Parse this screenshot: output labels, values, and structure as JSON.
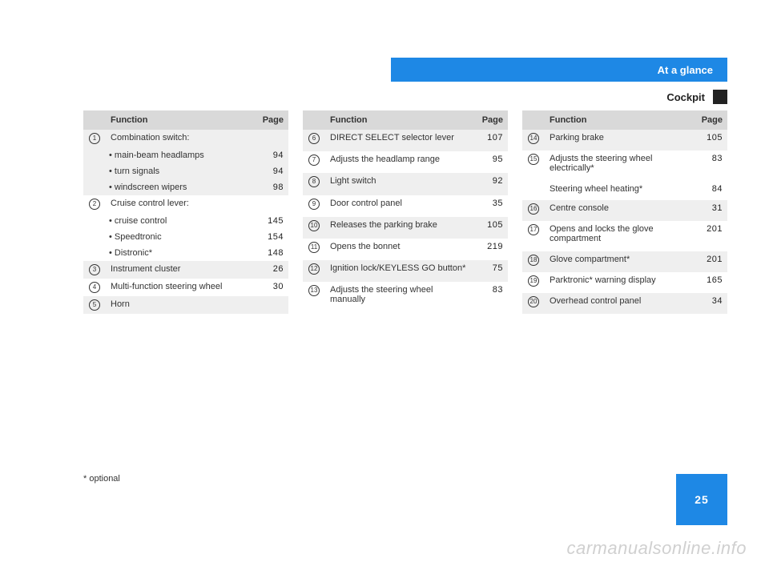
{
  "banner": {
    "text": "At a glance"
  },
  "subtitle": "Cockpit",
  "columns": {
    "function": "Function",
    "page": "Page"
  },
  "footnote": "* optional",
  "pageNumber": "25",
  "watermark": "carmanualsonline.info",
  "table1": [
    {
      "num": "1",
      "text": "Combination switch:",
      "page": "",
      "shade": true
    },
    {
      "num": "",
      "text": "• main-beam headlamps",
      "page": "94",
      "shade": true,
      "bullet": true
    },
    {
      "num": "",
      "text": "• turn signals",
      "page": "94",
      "shade": true,
      "bullet": true
    },
    {
      "num": "",
      "text": "• windscreen wipers",
      "page": "98",
      "shade": true,
      "bullet": true
    },
    {
      "num": "2",
      "text": "Cruise control lever:",
      "page": "",
      "shade": false
    },
    {
      "num": "",
      "text": "• cruise control",
      "page": "145",
      "shade": false,
      "bullet": true
    },
    {
      "num": "",
      "text": "• Speedtronic",
      "page": "154",
      "shade": false,
      "bullet": true
    },
    {
      "num": "",
      "text": "• Distronic*",
      "page": "148",
      "shade": false,
      "bullet": true
    },
    {
      "num": "3",
      "text": "Instrument cluster",
      "page": "26",
      "shade": true
    },
    {
      "num": "4",
      "text": "Multi-function steering wheel",
      "page": "30",
      "shade": false
    },
    {
      "num": "5",
      "text": "Horn",
      "page": "",
      "shade": true
    }
  ],
  "table2": [
    {
      "num": "6",
      "text": "DIRECT SELECT selector lever",
      "page": "107",
      "shade": true
    },
    {
      "num": "7",
      "text": "Adjusts the headlamp range",
      "page": "95",
      "shade": false
    },
    {
      "num": "8",
      "text": "Light switch",
      "page": "92",
      "shade": true
    },
    {
      "num": "9",
      "text": "Door control panel",
      "page": "35",
      "shade": false
    },
    {
      "num": "10",
      "text": "Releases the parking brake",
      "page": "105",
      "shade": true
    },
    {
      "num": "11",
      "text": "Opens the bonnet",
      "page": "219",
      "shade": false
    },
    {
      "num": "12",
      "text": "Ignition lock/KEYLESS GO button*",
      "page": "75",
      "shade": true
    },
    {
      "num": "13",
      "text": "Adjusts the steering wheel manually",
      "page": "83",
      "shade": false
    }
  ],
  "table3": [
    {
      "num": "14",
      "text": "Parking brake",
      "page": "105",
      "shade": true
    },
    {
      "num": "15",
      "text": "Adjusts the steering wheel electrically*",
      "page": "83",
      "shade": false
    },
    {
      "num": "",
      "text": "Steering wheel heating*",
      "page": "84",
      "shade": false
    },
    {
      "num": "16",
      "text": "Centre console",
      "page": "31",
      "shade": true
    },
    {
      "num": "17",
      "text": "Opens and locks the glove compartment",
      "page": "201",
      "shade": false
    },
    {
      "num": "18",
      "text": "Glove compartment*",
      "page": "201",
      "shade": true
    },
    {
      "num": "19",
      "text": "Parktronic* warning display",
      "page": "165",
      "shade": false
    },
    {
      "num": "20",
      "text": "Overhead control panel",
      "page": "34",
      "shade": true
    }
  ]
}
